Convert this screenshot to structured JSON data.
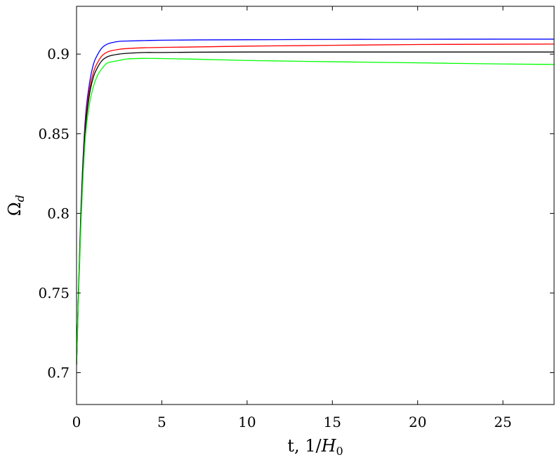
{
  "chart_data": {
    "type": "line",
    "xlabel": {
      "prefix": "t, 1/",
      "symbol": "H",
      "subscript": "0"
    },
    "ylabel": {
      "symbol": "Ω",
      "subscript": "d"
    },
    "xlim": [
      0,
      28
    ],
    "ylim": [
      0.68,
      0.93
    ],
    "grid": false,
    "legend": "none",
    "x_ticks": [
      0,
      5,
      10,
      15,
      20,
      25
    ],
    "x_tick_labels": [
      "0",
      "5",
      "10",
      "15",
      "20",
      "25"
    ],
    "y_ticks": [
      0.7,
      0.75,
      0.8,
      0.85,
      0.9
    ],
    "y_tick_labels": [
      "0.7",
      "0.75",
      "0.8",
      "0.85",
      "0.9"
    ],
    "series": [
      {
        "color": "#0000ff",
        "x": [
          0,
          0.25,
          0.5,
          0.75,
          1,
          1.25,
          1.5,
          1.75,
          2,
          2.5,
          3,
          4,
          5,
          7,
          10,
          15,
          20,
          25,
          28
        ],
        "y": [
          0.705,
          0.8,
          0.857,
          0.881,
          0.894,
          0.9,
          0.904,
          0.906,
          0.907,
          0.908,
          0.9082,
          0.9085,
          0.9087,
          0.9089,
          0.909,
          0.9092,
          0.9093,
          0.9094,
          0.9094
        ]
      },
      {
        "color": "#ff0000",
        "x": [
          0,
          0.25,
          0.5,
          0.75,
          1,
          1.25,
          1.5,
          1.75,
          2,
          2.5,
          3,
          4,
          5,
          7,
          10,
          15,
          20,
          25,
          28
        ],
        "y": [
          0.705,
          0.797,
          0.853,
          0.877,
          0.889,
          0.895,
          0.899,
          0.901,
          0.902,
          0.903,
          0.9035,
          0.904,
          0.9042,
          0.9045,
          0.905,
          0.9055,
          0.906,
          0.9062,
          0.9063
        ]
      },
      {
        "color": "#000000",
        "x": [
          0,
          0.25,
          0.5,
          0.75,
          1,
          1.25,
          1.5,
          1.75,
          2,
          2.5,
          3,
          4,
          5,
          7,
          10,
          15,
          20,
          25,
          28
        ],
        "y": [
          0.705,
          0.795,
          0.85,
          0.874,
          0.886,
          0.892,
          0.896,
          0.898,
          0.899,
          0.9,
          0.9005,
          0.901,
          0.901,
          0.9012,
          0.9013,
          0.9013,
          0.9013,
          0.9013,
          0.9013
        ]
      },
      {
        "color": "#00ff00",
        "x": [
          0,
          0.25,
          0.5,
          0.75,
          1,
          1.25,
          1.5,
          1.75,
          2,
          2.5,
          3,
          4,
          5,
          7,
          10,
          15,
          20,
          25,
          28
        ],
        "y": [
          0.705,
          0.79,
          0.845,
          0.868,
          0.88,
          0.887,
          0.891,
          0.894,
          0.895,
          0.896,
          0.897,
          0.8973,
          0.8972,
          0.8968,
          0.896,
          0.8952,
          0.8945,
          0.8938,
          0.8935
        ]
      }
    ]
  }
}
